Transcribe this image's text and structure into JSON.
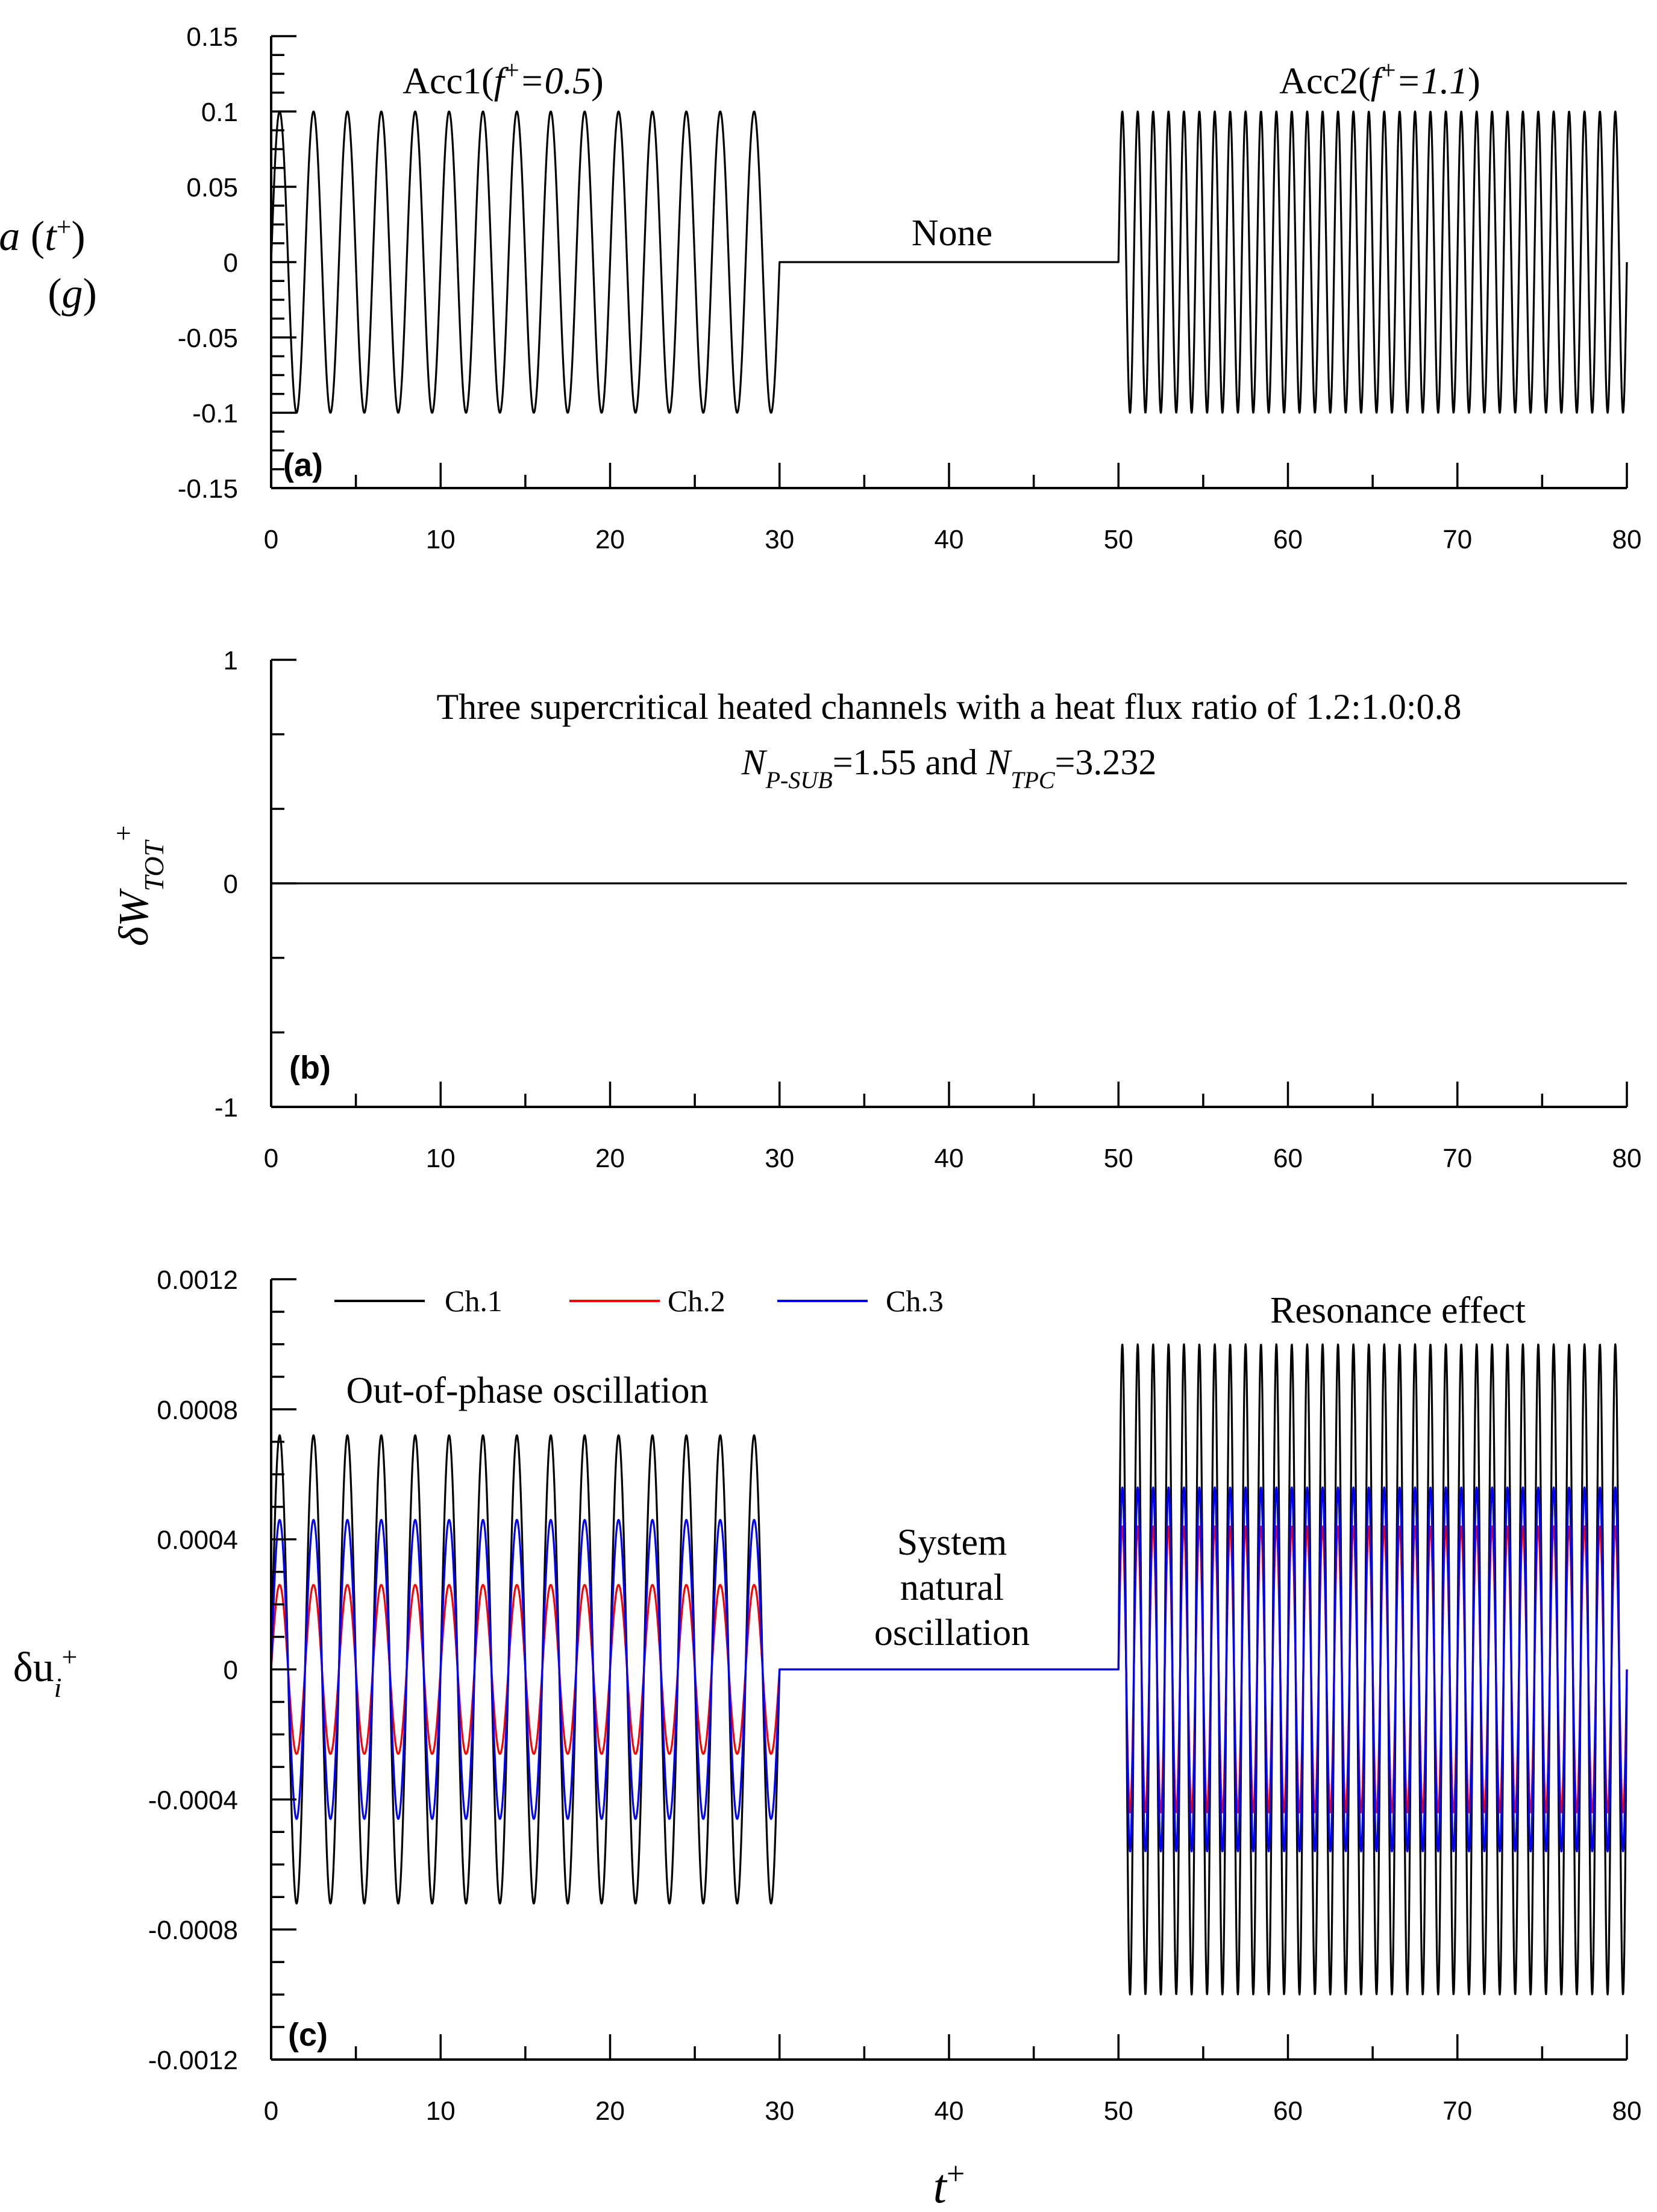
{
  "chart_data": [
    {
      "type": "line",
      "panel_label": "(a)",
      "ylabel_main": "a",
      "ylabel_arg": "t",
      "ylabel_arg_sup": "+",
      "ylabel_unit": "g",
      "xlim": [
        0,
        80
      ],
      "ylim": [
        -0.15,
        0.15
      ],
      "x_ticks": [
        "0",
        "10",
        "20",
        "30",
        "40",
        "50",
        "60",
        "70",
        "80"
      ],
      "y_ticks": [
        "-0.15",
        "-0.1",
        "-0.05",
        "0",
        "0.05",
        "0.1",
        "0.15"
      ],
      "grid": false,
      "annotations": {
        "acc1": {
          "pre": "Acc1(",
          "f": "f",
          "sup": "+",
          "eq": "=0.5",
          "post": ")"
        },
        "none": "None",
        "acc2": {
          "pre": "Acc2(",
          "f": "f",
          "sup": "+",
          "eq": "=1.1",
          "post": ")"
        }
      },
      "series": [
        {
          "color": "#000000",
          "segments": [
            {
              "x_start": 0,
              "x_end": 30,
              "amplitude": 0.1,
              "frequency": 0.5
            },
            {
              "x_start": 30,
              "x_end": 50,
              "amplitude": 0.0,
              "frequency": 0
            },
            {
              "x_start": 50,
              "x_end": 80,
              "amplitude": 0.1,
              "frequency": 1.1
            }
          ]
        }
      ]
    },
    {
      "type": "line",
      "panel_label": "(b)",
      "ylabel_main": "δW",
      "ylabel_sub": "TOT",
      "ylabel_sup": "+",
      "xlim": [
        0,
        80
      ],
      "ylim": [
        -1,
        1
      ],
      "x_ticks": [
        "0",
        "10",
        "20",
        "30",
        "40",
        "50",
        "60",
        "70",
        "80"
      ],
      "y_ticks": [
        "-1",
        "0",
        "1"
      ],
      "grid": false,
      "annotations": {
        "line1": "Three supercritical heated channels with a heat flux ratio of 1.2:1.0:0.8",
        "line2": {
          "n1": "N",
          "n1_sub": "P-SUB",
          "v1": "=1.55 and ",
          "n2": "N",
          "n2_sub": "TPC",
          "v2": "=3.232"
        }
      },
      "series": [
        {
          "color": "#000000",
          "x": [
            0,
            80
          ],
          "y": [
            0,
            0
          ]
        }
      ]
    },
    {
      "type": "line",
      "panel_label": "(c)",
      "ylabel_main": "δu",
      "ylabel_sub": "i",
      "ylabel_sup": "+",
      "xlabel_main": "t",
      "xlabel_sup": "+",
      "xlim": [
        0,
        80
      ],
      "ylim": [
        -0.0012,
        0.0012
      ],
      "x_ticks": [
        "0",
        "10",
        "20",
        "30",
        "40",
        "50",
        "60",
        "70",
        "80"
      ],
      "y_ticks": [
        "-0.0012",
        "-0.0008",
        "-0.0004",
        "0",
        "0.0004",
        "0.0008",
        "0.0012"
      ],
      "grid": false,
      "legend": "top-left",
      "annotations": {
        "out_of_phase": "Out-of-phase oscillation",
        "natural": [
          "System",
          "natural",
          "oscillation"
        ],
        "resonance": "Resonance effect"
      },
      "series": [
        {
          "name": "Ch.1",
          "color": "#000000",
          "segments": [
            {
              "x_start": 0,
              "x_end": 30,
              "amplitude": 0.00072,
              "frequency": 0.5
            },
            {
              "x_start": 30,
              "x_end": 50,
              "amplitude": 0.0,
              "frequency": 0
            },
            {
              "x_start": 50,
              "x_end": 80,
              "amplitude": 0.001,
              "frequency": 1.1
            }
          ]
        },
        {
          "name": "Ch.2",
          "color": "#ff0000",
          "segments": [
            {
              "x_start": 0,
              "x_end": 30,
              "amplitude": 0.00026,
              "frequency": 0.5
            },
            {
              "x_start": 30,
              "x_end": 50,
              "amplitude": 0.0,
              "frequency": 0
            },
            {
              "x_start": 50,
              "x_end": 80,
              "amplitude": 0.00044,
              "frequency": 1.1
            }
          ]
        },
        {
          "name": "Ch.3",
          "color": "#0000ff",
          "segments": [
            {
              "x_start": 0,
              "x_end": 30,
              "amplitude": 0.00046,
              "frequency": 0.5
            },
            {
              "x_start": 30,
              "x_end": 50,
              "amplitude": 0.0,
              "frequency": 0
            },
            {
              "x_start": 50,
              "x_end": 80,
              "amplitude": 0.00056,
              "frequency": 1.1
            }
          ]
        }
      ]
    }
  ]
}
